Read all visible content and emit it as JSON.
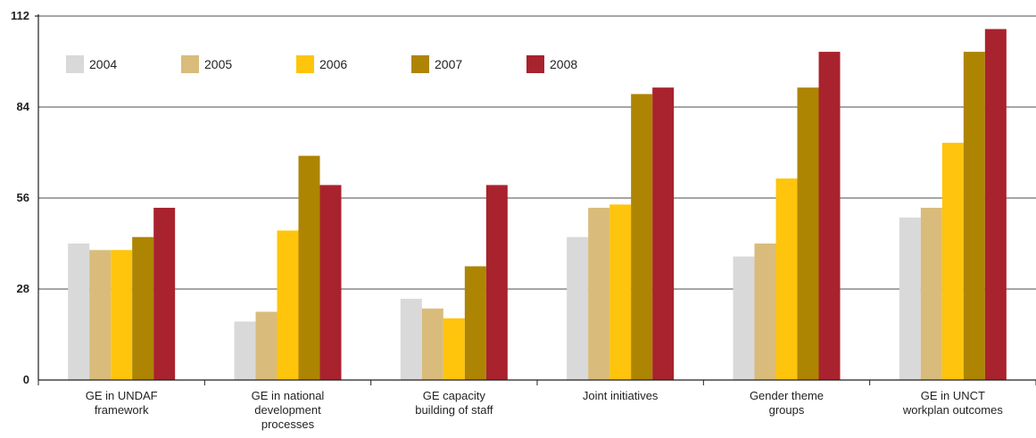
{
  "chart_data": {
    "type": "bar",
    "title": "",
    "xlabel": "",
    "ylabel": "",
    "ylim": [
      0,
      112
    ],
    "yticks": [
      0,
      28,
      56,
      84,
      112
    ],
    "grid": true,
    "legend_position": "top-left",
    "categories": [
      [
        "GE in UNDAF",
        "framework"
      ],
      [
        "GE in national",
        "development",
        "processes"
      ],
      [
        "GE capacity",
        "building of staff"
      ],
      [
        "Joint initiatives"
      ],
      [
        "Gender theme",
        "groups"
      ],
      [
        "GE in UNCT",
        "workplan outcomes"
      ]
    ],
    "series": [
      {
        "name": "2004",
        "color": "#d9d9d9",
        "values": [
          42,
          18,
          25,
          44,
          38,
          50
        ]
      },
      {
        "name": "2005",
        "color": "#d9bc7b",
        "values": [
          40,
          21,
          22,
          53,
          42,
          53
        ]
      },
      {
        "name": "2006",
        "color": "#ffc40c",
        "values": [
          40,
          46,
          19,
          54,
          62,
          73
        ]
      },
      {
        "name": "2007",
        "color": "#ad8503",
        "values": [
          44,
          69,
          35,
          88,
          90,
          101
        ]
      },
      {
        "name": "2008",
        "color": "#a8232d",
        "values": [
          53,
          60,
          60,
          90,
          101,
          108
        ]
      }
    ]
  }
}
